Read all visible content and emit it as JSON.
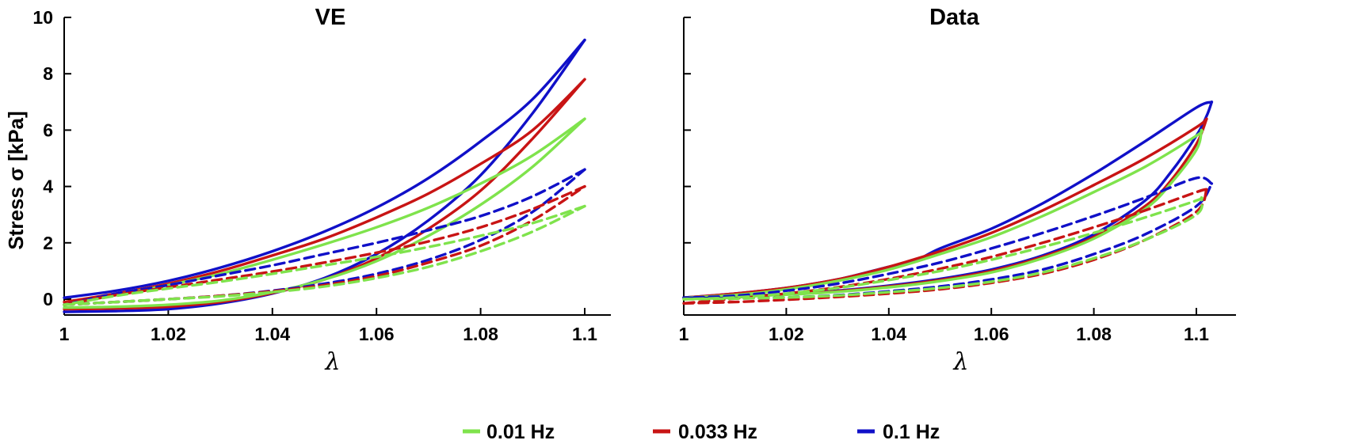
{
  "colors": {
    "0.01 Hz": "#7fe34c",
    "0.033 Hz": "#c81414",
    "0.1 Hz": "#1010c8"
  },
  "chart_data": [
    {
      "id": "ve",
      "type": "line",
      "title": "VE",
      "xlabel": "λ",
      "ylabel": "Stress σ [kPa]",
      "xlim": [
        1.0,
        1.105
      ],
      "ylim": [
        -0.5,
        10
      ],
      "xticks": [
        1,
        1.02,
        1.04,
        1.06,
        1.08,
        1.1
      ],
      "xtick_labels": [
        "1",
        "1.02",
        "1.04",
        "1.06",
        "1.08",
        "1.1"
      ],
      "yticks": [
        0,
        2,
        4,
        6,
        8,
        10
      ],
      "ytick_labels": [
        "0",
        "2",
        "4",
        "6",
        "8",
        "10"
      ],
      "series": [
        {
          "name": "0.1 Hz solid loading",
          "freq": "0.1 Hz",
          "style": "solid",
          "x": [
            1.0,
            1.01,
            1.02,
            1.03,
            1.04,
            1.05,
            1.06,
            1.07,
            1.08,
            1.09,
            1.1
          ],
          "y": [
            -0.45,
            -0.42,
            -0.35,
            -0.15,
            0.2,
            0.75,
            1.6,
            2.8,
            4.4,
            6.6,
            9.2
          ]
        },
        {
          "name": "0.1 Hz solid unloading",
          "freq": "0.1 Hz",
          "style": "solid",
          "x": [
            1.1,
            1.09,
            1.08,
            1.07,
            1.06,
            1.05,
            1.04,
            1.03,
            1.02,
            1.01,
            1.0
          ],
          "y": [
            9.2,
            7.1,
            5.6,
            4.3,
            3.25,
            2.4,
            1.7,
            1.12,
            0.65,
            0.3,
            0.05
          ]
        },
        {
          "name": "0.033 Hz solid loading",
          "freq": "0.033 Hz",
          "style": "solid",
          "x": [
            1.0,
            1.01,
            1.02,
            1.03,
            1.04,
            1.05,
            1.06,
            1.07,
            1.08,
            1.09,
            1.1
          ],
          "y": [
            -0.35,
            -0.33,
            -0.27,
            -0.1,
            0.22,
            0.7,
            1.45,
            2.5,
            3.85,
            5.7,
            7.8
          ]
        },
        {
          "name": "0.033 Hz solid unloading",
          "freq": "0.033 Hz",
          "style": "solid",
          "x": [
            1.1,
            1.09,
            1.08,
            1.07,
            1.06,
            1.05,
            1.04,
            1.03,
            1.02,
            1.01,
            1.0
          ],
          "y": [
            7.8,
            6.0,
            4.8,
            3.75,
            2.9,
            2.15,
            1.55,
            1.0,
            0.55,
            0.2,
            -0.1
          ]
        },
        {
          "name": "0.01 Hz solid loading",
          "freq": "0.01 Hz",
          "style": "solid",
          "x": [
            1.0,
            1.01,
            1.02,
            1.03,
            1.04,
            1.05,
            1.06,
            1.07,
            1.08,
            1.09,
            1.1
          ],
          "y": [
            -0.3,
            -0.27,
            -0.2,
            -0.05,
            0.25,
            0.7,
            1.35,
            2.25,
            3.35,
            4.7,
            6.4
          ]
        },
        {
          "name": "0.01 Hz solid unloading",
          "freq": "0.01 Hz",
          "style": "solid",
          "x": [
            1.1,
            1.09,
            1.08,
            1.07,
            1.06,
            1.05,
            1.04,
            1.03,
            1.02,
            1.01,
            1.0
          ],
          "y": [
            6.4,
            5.1,
            4.1,
            3.25,
            2.55,
            1.95,
            1.4,
            0.9,
            0.5,
            0.15,
            -0.2
          ]
        },
        {
          "name": "0.1 Hz dashed loading",
          "freq": "0.1 Hz",
          "style": "dashed",
          "x": [
            1.0,
            1.01,
            1.02,
            1.03,
            1.04,
            1.05,
            1.06,
            1.07,
            1.08,
            1.09,
            1.1
          ],
          "y": [
            -0.2,
            -0.1,
            0.0,
            0.12,
            0.3,
            0.55,
            0.9,
            1.4,
            2.1,
            3.1,
            4.6
          ]
        },
        {
          "name": "0.1 Hz dashed unloading",
          "freq": "0.1 Hz",
          "style": "dashed",
          "x": [
            1.1,
            1.09,
            1.08,
            1.07,
            1.06,
            1.05,
            1.04,
            1.03,
            1.02,
            1.01,
            1.0
          ],
          "y": [
            4.6,
            3.65,
            2.95,
            2.45,
            2.0,
            1.6,
            1.2,
            0.85,
            0.5,
            0.2,
            -0.2
          ]
        },
        {
          "name": "0.033 Hz dashed loading",
          "freq": "0.033 Hz",
          "style": "dashed",
          "x": [
            1.0,
            1.01,
            1.02,
            1.03,
            1.04,
            1.05,
            1.06,
            1.07,
            1.08,
            1.09,
            1.1
          ],
          "y": [
            -0.2,
            -0.1,
            0.0,
            0.12,
            0.28,
            0.5,
            0.82,
            1.3,
            1.9,
            2.8,
            4.0
          ]
        },
        {
          "name": "0.033 Hz dashed unloading",
          "freq": "0.033 Hz",
          "style": "dashed",
          "x": [
            1.1,
            1.09,
            1.08,
            1.07,
            1.06,
            1.05,
            1.04,
            1.03,
            1.02,
            1.01,
            1.0
          ],
          "y": [
            4.0,
            3.2,
            2.55,
            2.05,
            1.65,
            1.3,
            0.98,
            0.7,
            0.42,
            0.15,
            -0.2
          ]
        },
        {
          "name": "0.01 Hz dashed loading",
          "freq": "0.01 Hz",
          "style": "dashed",
          "x": [
            1.0,
            1.01,
            1.02,
            1.03,
            1.04,
            1.05,
            1.06,
            1.07,
            1.08,
            1.09,
            1.1
          ],
          "y": [
            -0.2,
            -0.1,
            0.0,
            0.1,
            0.25,
            0.45,
            0.75,
            1.15,
            1.7,
            2.4,
            3.3
          ]
        },
        {
          "name": "0.01 Hz dashed unloading",
          "freq": "0.01 Hz",
          "style": "dashed",
          "x": [
            1.1,
            1.09,
            1.08,
            1.07,
            1.06,
            1.05,
            1.04,
            1.03,
            1.02,
            1.01,
            1.0
          ],
          "y": [
            3.3,
            2.7,
            2.25,
            1.85,
            1.5,
            1.2,
            0.9,
            0.62,
            0.38,
            0.12,
            -0.2
          ]
        }
      ]
    },
    {
      "id": "data",
      "type": "line",
      "title": "Data",
      "xlabel": "λ",
      "ylabel": "",
      "xlim": [
        1.0,
        1.105
      ],
      "ylim": [
        -0.5,
        10
      ],
      "xticks": [
        1,
        1.02,
        1.04,
        1.06,
        1.08,
        1.1
      ],
      "xtick_labels": [
        "1",
        "1.02",
        "1.04",
        "1.06",
        "1.08",
        "1.1"
      ],
      "yticks": [
        0,
        2,
        4,
        6,
        8,
        10
      ],
      "ytick_labels": [],
      "series": [
        {
          "name": "0.1 Hz solid loading",
          "freq": "0.1 Hz",
          "style": "solid",
          "x": [
            1.0,
            1.01,
            1.02,
            1.03,
            1.04,
            1.05,
            1.06,
            1.07,
            1.08,
            1.09,
            1.095,
            1.1,
            1.102,
            1.103
          ],
          "y": [
            0.05,
            0.1,
            0.18,
            0.3,
            0.48,
            0.72,
            1.05,
            1.55,
            2.3,
            3.5,
            4.5,
            5.8,
            6.5,
            7.0
          ]
        },
        {
          "name": "0.1 Hz solid unloading",
          "freq": "0.1 Hz",
          "style": "solid",
          "x": [
            1.103,
            1.1,
            1.09,
            1.08,
            1.07,
            1.06,
            1.05,
            1.045,
            1.04,
            1.03,
            1.02,
            1.01,
            1.0
          ],
          "y": [
            7.0,
            6.8,
            5.6,
            4.45,
            3.4,
            2.5,
            1.8,
            1.35,
            1.15,
            0.7,
            0.4,
            0.2,
            0.05
          ]
        },
        {
          "name": "0.033 Hz solid loading",
          "freq": "0.033 Hz",
          "style": "solid",
          "x": [
            1.0,
            1.01,
            1.02,
            1.03,
            1.04,
            1.05,
            1.06,
            1.07,
            1.08,
            1.09,
            1.095,
            1.1,
            1.102
          ],
          "y": [
            0.05,
            0.1,
            0.17,
            0.28,
            0.45,
            0.68,
            1.0,
            1.5,
            2.2,
            3.3,
            4.2,
            5.5,
            6.4
          ]
        },
        {
          "name": "0.033 Hz solid unloading",
          "freq": "0.033 Hz",
          "style": "solid",
          "x": [
            1.102,
            1.1,
            1.09,
            1.08,
            1.07,
            1.06,
            1.05,
            1.04,
            1.03,
            1.02,
            1.01,
            1.0
          ],
          "y": [
            6.4,
            6.1,
            5.0,
            4.05,
            3.15,
            2.35,
            1.7,
            1.15,
            0.7,
            0.4,
            0.2,
            0.05
          ]
        },
        {
          "name": "0.01 Hz solid loading",
          "freq": "0.01 Hz",
          "style": "solid",
          "x": [
            1.0,
            1.01,
            1.02,
            1.03,
            1.04,
            1.05,
            1.06,
            1.07,
            1.08,
            1.09,
            1.095,
            1.1,
            1.101
          ],
          "y": [
            0.05,
            0.1,
            0.16,
            0.26,
            0.42,
            0.64,
            0.95,
            1.45,
            2.15,
            3.2,
            4.1,
            5.3,
            6.0
          ]
        },
        {
          "name": "0.01 Hz solid unloading",
          "freq": "0.01 Hz",
          "style": "solid",
          "x": [
            1.101,
            1.1,
            1.09,
            1.08,
            1.07,
            1.06,
            1.05,
            1.04,
            1.03,
            1.02,
            1.01,
            1.0
          ],
          "y": [
            6.0,
            5.8,
            4.7,
            3.8,
            2.95,
            2.2,
            1.6,
            1.05,
            0.65,
            0.35,
            0.15,
            0.05
          ]
        },
        {
          "name": "0.1 Hz dashed loading",
          "freq": "0.1 Hz",
          "style": "dashed",
          "x": [
            1.0,
            1.01,
            1.02,
            1.03,
            1.04,
            1.05,
            1.06,
            1.07,
            1.08,
            1.09,
            1.1,
            1.103
          ],
          "y": [
            0.05,
            0.03,
            0.06,
            0.14,
            0.28,
            0.45,
            0.7,
            1.05,
            1.6,
            2.3,
            3.3,
            4.1
          ]
        },
        {
          "name": "0.1 Hz dashed unloading",
          "freq": "0.1 Hz",
          "style": "dashed",
          "x": [
            1.103,
            1.1,
            1.09,
            1.08,
            1.07,
            1.06,
            1.05,
            1.04,
            1.03,
            1.02,
            1.01,
            1.0
          ],
          "y": [
            4.1,
            4.3,
            3.6,
            2.95,
            2.35,
            1.8,
            1.3,
            0.9,
            0.55,
            0.3,
            0.12,
            0.05
          ]
        },
        {
          "name": "0.033 Hz dashed loading",
          "freq": "0.033 Hz",
          "style": "dashed",
          "x": [
            1.0,
            1.01,
            1.02,
            1.03,
            1.04,
            1.05,
            1.06,
            1.07,
            1.08,
            1.09,
            1.1,
            1.102
          ],
          "y": [
            -0.15,
            -0.1,
            -0.02,
            0.08,
            0.2,
            0.35,
            0.58,
            0.9,
            1.4,
            2.1,
            3.1,
            3.9
          ]
        },
        {
          "name": "0.033 Hz dashed unloading",
          "freq": "0.033 Hz",
          "style": "dashed",
          "x": [
            1.102,
            1.1,
            1.09,
            1.08,
            1.07,
            1.06,
            1.05,
            1.04,
            1.03,
            1.02,
            1.01,
            1.0
          ],
          "y": [
            3.9,
            3.8,
            3.15,
            2.55,
            2.0,
            1.5,
            1.08,
            0.72,
            0.42,
            0.2,
            0.02,
            -0.15
          ]
        },
        {
          "name": "0.01 Hz dashed loading",
          "freq": "0.01 Hz",
          "style": "dashed",
          "x": [
            1.0,
            1.01,
            1.02,
            1.03,
            1.04,
            1.05,
            1.06,
            1.07,
            1.08,
            1.09,
            1.1,
            1.101
          ],
          "y": [
            0.0,
            0.02,
            0.06,
            0.13,
            0.25,
            0.4,
            0.62,
            0.95,
            1.45,
            2.1,
            3.0,
            3.6
          ]
        },
        {
          "name": "0.01 Hz dashed unloading",
          "freq": "0.01 Hz",
          "style": "dashed",
          "x": [
            1.101,
            1.1,
            1.09,
            1.08,
            1.07,
            1.06,
            1.05,
            1.04,
            1.03,
            1.02,
            1.01,
            1.0
          ],
          "y": [
            3.6,
            3.5,
            2.9,
            2.35,
            1.85,
            1.4,
            1.0,
            0.68,
            0.4,
            0.2,
            0.06,
            0.0
          ]
        }
      ]
    }
  ],
  "legend": {
    "items": [
      {
        "label": "0.01 Hz",
        "color_key": "0.01 Hz"
      },
      {
        "label": "0.033 Hz",
        "color_key": "0.033 Hz"
      },
      {
        "label": "0.1 Hz",
        "color_key": "0.1 Hz"
      }
    ]
  }
}
